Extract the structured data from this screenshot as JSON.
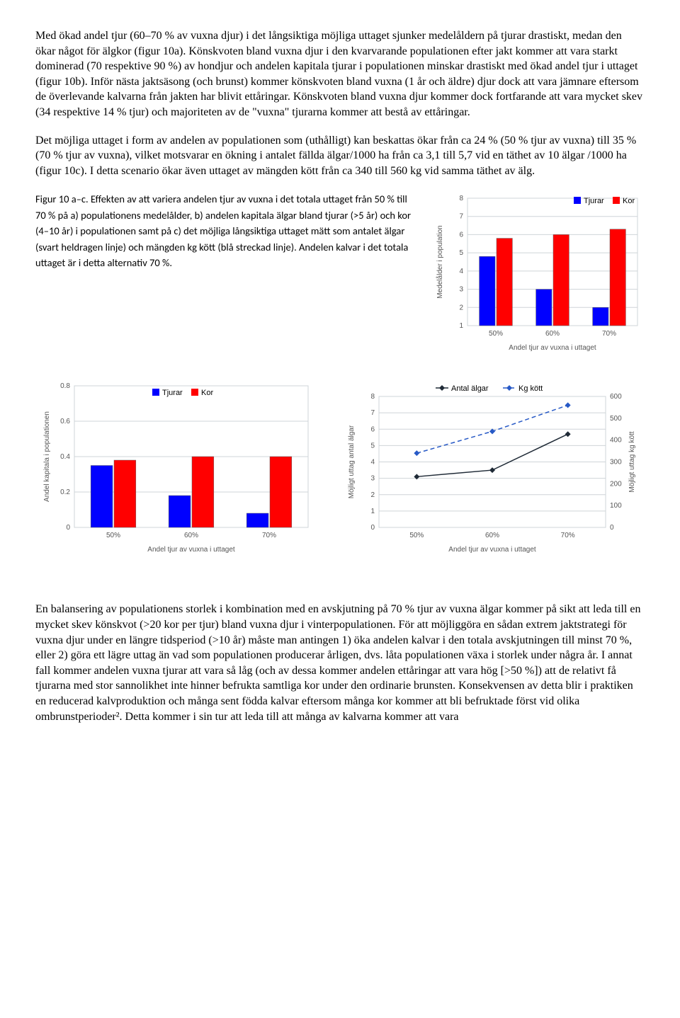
{
  "paragraphs": {
    "p1": "Med ökad andel tjur (60–70 % av vuxna djur) i det långsiktiga möjliga uttaget sjunker medelåldern på tjurar drastiskt, medan den ökar något för älgkor (figur 10a). Könskvoten bland vuxna djur i den kvarvarande populationen efter jakt kommer att vara starkt dominerad (70 respektive 90 %) av hondjur och andelen kapitala tjurar i populationen minskar drastiskt med ökad andel tjur i uttaget (figur 10b). Inför nästa jaktsäsong (och brunst) kommer könskvoten bland vuxna (1 år och äldre) djur dock att vara jämnare eftersom de överlevande kalvarna från jakten har blivit ettåringar. Könskvoten bland vuxna djur kommer dock fortfarande att vara mycket skev (34 respektive 14 % tjur) och majoriteten av de \"vuxna\" tjurarna kommer att bestå av ettåringar.",
    "p2": "Det möjliga uttaget i form av andelen av populationen som (uthålligt) kan beskattas ökar från ca 24 % (50 % tjur av vuxna) till 35 % (70 % tjur av vuxna), vilket motsvarar en ökning i antalet fällda älgar/1000 ha från ca 3,1 till 5,7 vid en täthet av 10 älgar /1000 ha (figur 10c). I detta scenario ökar även uttaget av mängden kött från ca 340 till 560 kg vid samma täthet av älg.",
    "p3": "En balansering av populationens storlek i kombination med en avskjutning på 70 % tjur av vuxna älgar kommer på sikt att leda till en mycket skev könskvot (>20 kor per tjur) bland vuxna djur i vinterpopulationen. För att möjliggöra en sådan extrem jaktstrategi för vuxna djur under en längre tidsperiod (>10 år) måste man antingen 1) öka andelen kalvar i den totala avskjutningen till minst 70 %, eller 2) göra ett lägre uttag än vad som populationen producerar årligen, dvs. låta populationen växa i storlek under några år. I annat fall kommer andelen vuxna tjurar att vara så låg (och av dessa kommer andelen ettåringar att vara hög [>50 %]) att de relativt få tjurarna med stor sannolikhet inte hinner befrukta samtliga kor under den ordinarie brunsten. Konsekvensen av detta blir i praktiken en reducerad kalvproduktion och många sent födda kalvar eftersom många kor kommer att bli befruktade först vid olika ombrunstperioder². Detta kommer i sin tur att leda till att många av kalvarna kommer att vara"
  },
  "caption": "Figur 10 a–c. Effekten av att variera andelen tjur av vuxna i det totala uttaget från 50 % till 70 % på a) populationens medelålder, b) andelen kapitala älgar bland tjurar (>5 år) och kor (4–10 år) i populationen samt på c) det möjliga långsiktiga uttaget mätt som antalet älgar (svart heldragen linje) och mängden kg kött (blå streckad linje). Andelen kalvar i det totala uttaget är i detta alternativ 70 %.",
  "chart_a": {
    "type": "bar",
    "categories": [
      "50%",
      "60%",
      "70%"
    ],
    "series": [
      {
        "name": "Tjurar",
        "color": "#0000ff",
        "values": [
          4.8,
          3.0,
          2.0
        ]
      },
      {
        "name": "Kor",
        "color": "#ff0000",
        "values": [
          5.8,
          6.0,
          6.3
        ]
      }
    ],
    "ylim": [
      1,
      8
    ],
    "yticks": [
      1,
      2,
      3,
      4,
      5,
      6,
      7,
      8
    ],
    "ylabel": "Medelålder i population",
    "xlabel": "Andel tjur av vuxna i uttaget",
    "grid_color": "#cfd4d8",
    "legend_pos": "top-right"
  },
  "chart_b": {
    "type": "bar",
    "categories": [
      "50%",
      "60%",
      "70%"
    ],
    "series": [
      {
        "name": "Tjurar",
        "color": "#0000ff",
        "values": [
          0.35,
          0.18,
          0.08
        ]
      },
      {
        "name": "Kor",
        "color": "#ff0000",
        "values": [
          0.38,
          0.4,
          0.4
        ]
      }
    ],
    "ylim": [
      0,
      0.8
    ],
    "yticks": [
      0,
      0.2,
      0.4,
      0.6,
      0.8
    ],
    "ylabel": "Andel kapitala i populationen",
    "xlabel": "Andel tjur av vuxna i uttaget",
    "grid_color": "#cfd4d8",
    "legend_pos": "top-center"
  },
  "chart_c": {
    "type": "line",
    "categories": [
      "50%",
      "60%",
      "70%"
    ],
    "series": [
      {
        "name": "Antal älgar",
        "color": "#1f2a36",
        "values": [
          3.1,
          3.5,
          5.7
        ],
        "dash": "0",
        "marker": "diamond"
      },
      {
        "name": "Kg kött",
        "color": "#2759c6",
        "values": [
          340,
          440,
          560
        ],
        "dash": "6 4",
        "marker": "diamond"
      }
    ],
    "ylim_left": [
      0,
      8
    ],
    "yticks_left": [
      0,
      1,
      2,
      3,
      4,
      5,
      6,
      7,
      8
    ],
    "ylim_right": [
      0,
      600
    ],
    "yticks_right": [
      0,
      100,
      200,
      300,
      400,
      500,
      600
    ],
    "ylabel_left": "Möjligt uttag antal älgar",
    "ylabel_right": "Möjligt uttag kg kött",
    "xlabel": "Andel tjur av vuxna i uttaget",
    "grid_color": "#cfd4d8",
    "legend_pos": "top-center"
  },
  "colors": {
    "grid": "#cfd4d8",
    "axis": "#808890"
  }
}
